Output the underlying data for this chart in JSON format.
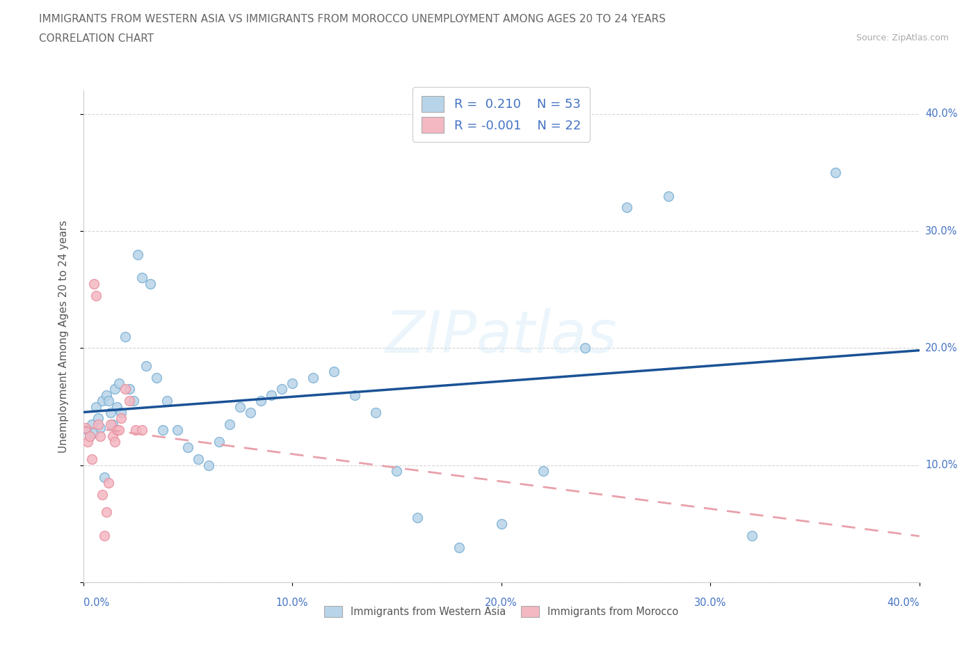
{
  "title_line1": "IMMIGRANTS FROM WESTERN ASIA VS IMMIGRANTS FROM MOROCCO UNEMPLOYMENT AMONG AGES 20 TO 24 YEARS",
  "title_line2": "CORRELATION CHART",
  "source": "Source: ZipAtlas.com",
  "ylabel": "Unemployment Among Ages 20 to 24 years",
  "watermark": "ZIPatlas",
  "R_blue": 0.21,
  "N_blue": 53,
  "R_pink": -0.001,
  "N_pink": 22,
  "blue_fill": "#b8d4e8",
  "blue_edge": "#7aafd4",
  "pink_fill": "#f4b8c2",
  "pink_edge": "#e890a0",
  "blue_line_color": "#1a5296",
  "pink_line_color": "#e8a0aa",
  "grid_color": "#cccccc",
  "background_color": "#ffffff",
  "title_color": "#666666",
  "axis_label_color": "#4472c4",
  "blue_x": [
    0.2,
    0.3,
    0.4,
    0.5,
    0.6,
    0.7,
    0.8,
    0.9,
    1.0,
    1.1,
    1.2,
    1.3,
    1.4,
    1.5,
    1.6,
    1.7,
    1.8,
    2.0,
    2.2,
    2.4,
    2.6,
    2.8,
    3.0,
    3.2,
    3.5,
    3.8,
    4.0,
    4.5,
    5.0,
    5.5,
    6.0,
    6.5,
    7.0,
    7.5,
    8.0,
    8.5,
    9.0,
    9.5,
    10.0,
    11.0,
    12.0,
    13.0,
    14.0,
    15.0,
    16.0,
    18.0,
    20.0,
    22.0,
    24.0,
    26.0,
    28.0,
    32.0,
    36.0
  ],
  "blue_y": [
    13.0,
    12.5,
    13.5,
    12.8,
    15.0,
    14.0,
    13.2,
    15.5,
    9.0,
    16.0,
    15.5,
    14.5,
    13.5,
    16.5,
    15.0,
    17.0,
    14.5,
    21.0,
    16.5,
    15.5,
    28.0,
    26.0,
    18.5,
    25.5,
    17.5,
    13.0,
    15.5,
    13.0,
    11.5,
    10.5,
    10.0,
    12.0,
    13.5,
    15.0,
    14.5,
    15.5,
    16.0,
    16.5,
    17.0,
    17.5,
    18.0,
    16.0,
    14.5,
    9.5,
    5.5,
    3.0,
    5.0,
    9.5,
    20.0,
    32.0,
    33.0,
    4.0,
    35.0
  ],
  "pink_x": [
    0.1,
    0.2,
    0.3,
    0.4,
    0.5,
    0.6,
    0.7,
    0.8,
    0.9,
    1.0,
    1.1,
    1.2,
    1.3,
    1.4,
    1.5,
    1.6,
    1.7,
    1.8,
    2.0,
    2.2,
    2.5,
    2.8
  ],
  "pink_y": [
    13.2,
    12.0,
    12.5,
    10.5,
    25.5,
    24.5,
    13.5,
    12.5,
    7.5,
    4.0,
    6.0,
    8.5,
    13.5,
    12.5,
    12.0,
    13.0,
    13.0,
    14.0,
    16.5,
    15.5,
    13.0,
    13.0
  ],
  "xlim": [
    0.0,
    40.0
  ],
  "ylim": [
    0.0,
    42.0
  ],
  "xticks": [
    0.0,
    10.0,
    20.0,
    30.0,
    40.0
  ],
  "xtick_labels": [
    "0.0%",
    "10.0%",
    "20.0%",
    "30.0%",
    "40.0%"
  ],
  "yticks": [
    10.0,
    20.0,
    30.0,
    40.0
  ],
  "ytick_labels": [
    "10.0%",
    "20.0%",
    "30.0%",
    "40.0%"
  ]
}
